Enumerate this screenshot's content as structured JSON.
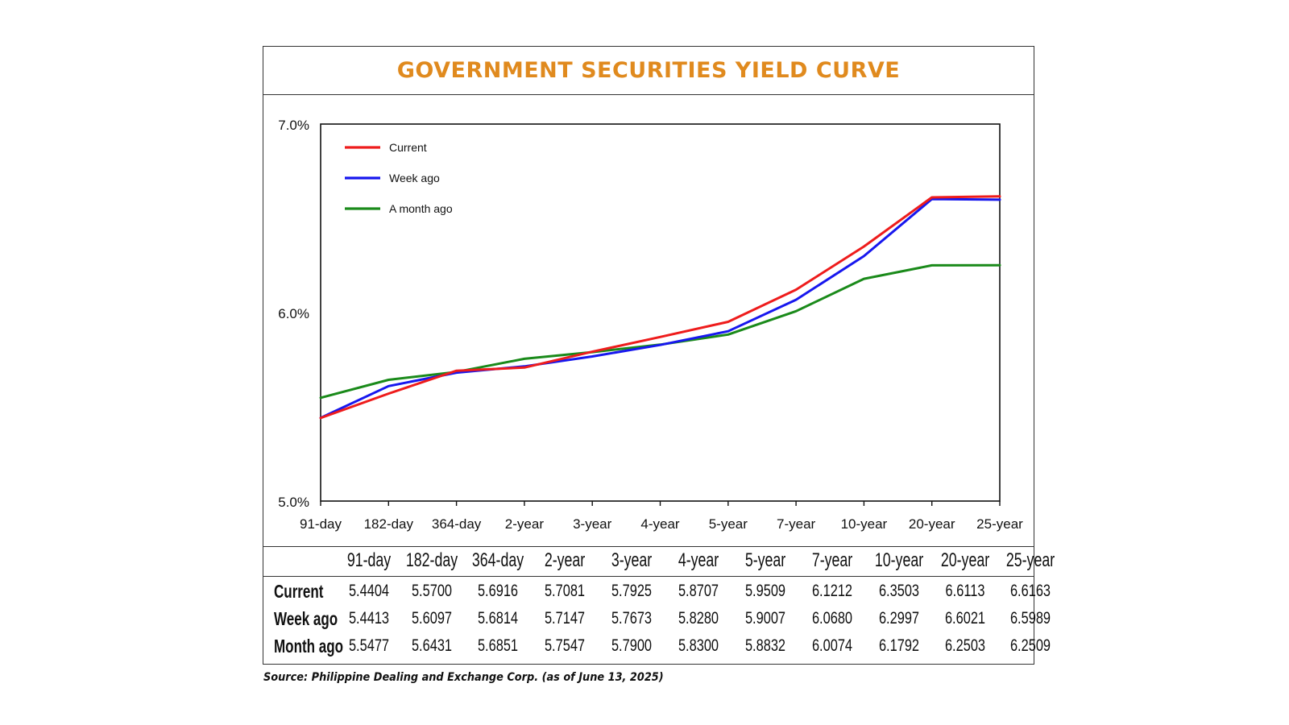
{
  "chart_data": {
    "type": "line",
    "title": "GOVERNMENT SECURITIES YIELD CURVE",
    "categories": [
      "91-day",
      "182-day",
      "364-day",
      "2-year",
      "3-year",
      "4-year",
      "5-year",
      "7-year",
      "10-year",
      "20-year",
      "25-year"
    ],
    "ylim": [
      5.0,
      7.0
    ],
    "ytick_values": [
      5.0,
      6.0,
      7.0
    ],
    "ytick_labels": [
      "5.0%",
      "6.0%",
      "7.0%"
    ],
    "legend_position": "top-left",
    "series": [
      {
        "name": "Current",
        "color": "#ee1c1c",
        "values": [
          5.4404,
          5.57,
          5.6916,
          5.7081,
          5.7925,
          5.8707,
          5.9509,
          6.1212,
          6.3503,
          6.6113,
          6.6163
        ]
      },
      {
        "name": "Week ago",
        "color": "#1717ee",
        "values": [
          5.4413,
          5.6097,
          5.6814,
          5.7147,
          5.7673,
          5.828,
          5.9007,
          6.068,
          6.2997,
          6.6021,
          6.5989
        ]
      },
      {
        "name": "A month ago",
        "color": "#1a8a1a",
        "values": [
          5.5477,
          5.6431,
          5.6851,
          5.7547,
          5.79,
          5.83,
          5.8832,
          6.0074,
          6.1792,
          6.2503,
          6.2509
        ]
      }
    ]
  },
  "table": {
    "headers": [
      "91-day",
      "182-day",
      "364-day",
      "2-year",
      "3-year",
      "4-year",
      "5-year",
      "7-year",
      "10-year",
      "20-year",
      "25-year"
    ],
    "rows": [
      {
        "label": "Current",
        "values": [
          "5.4404",
          "5.5700",
          "5.6916",
          "5.7081",
          "5.7925",
          "5.8707",
          "5.9509",
          "6.1212",
          "6.3503",
          "6.6113",
          "6.6163"
        ]
      },
      {
        "label": "Week ago",
        "values": [
          "5.4413",
          "5.6097",
          "5.6814",
          "5.7147",
          "5.7673",
          "5.8280",
          "5.9007",
          "6.0680",
          "6.2997",
          "6.6021",
          "6.5989"
        ]
      },
      {
        "label": "Month ago",
        "values": [
          "5.5477",
          "5.6431",
          "5.6851",
          "5.7547",
          "5.7900",
          "5.8300",
          "5.8832",
          "6.0074",
          "6.1792",
          "6.2503",
          "6.2509"
        ]
      }
    ]
  },
  "source": "Source: Philippine Dealing and Exchange Corp. (as of June 13, 2025)"
}
